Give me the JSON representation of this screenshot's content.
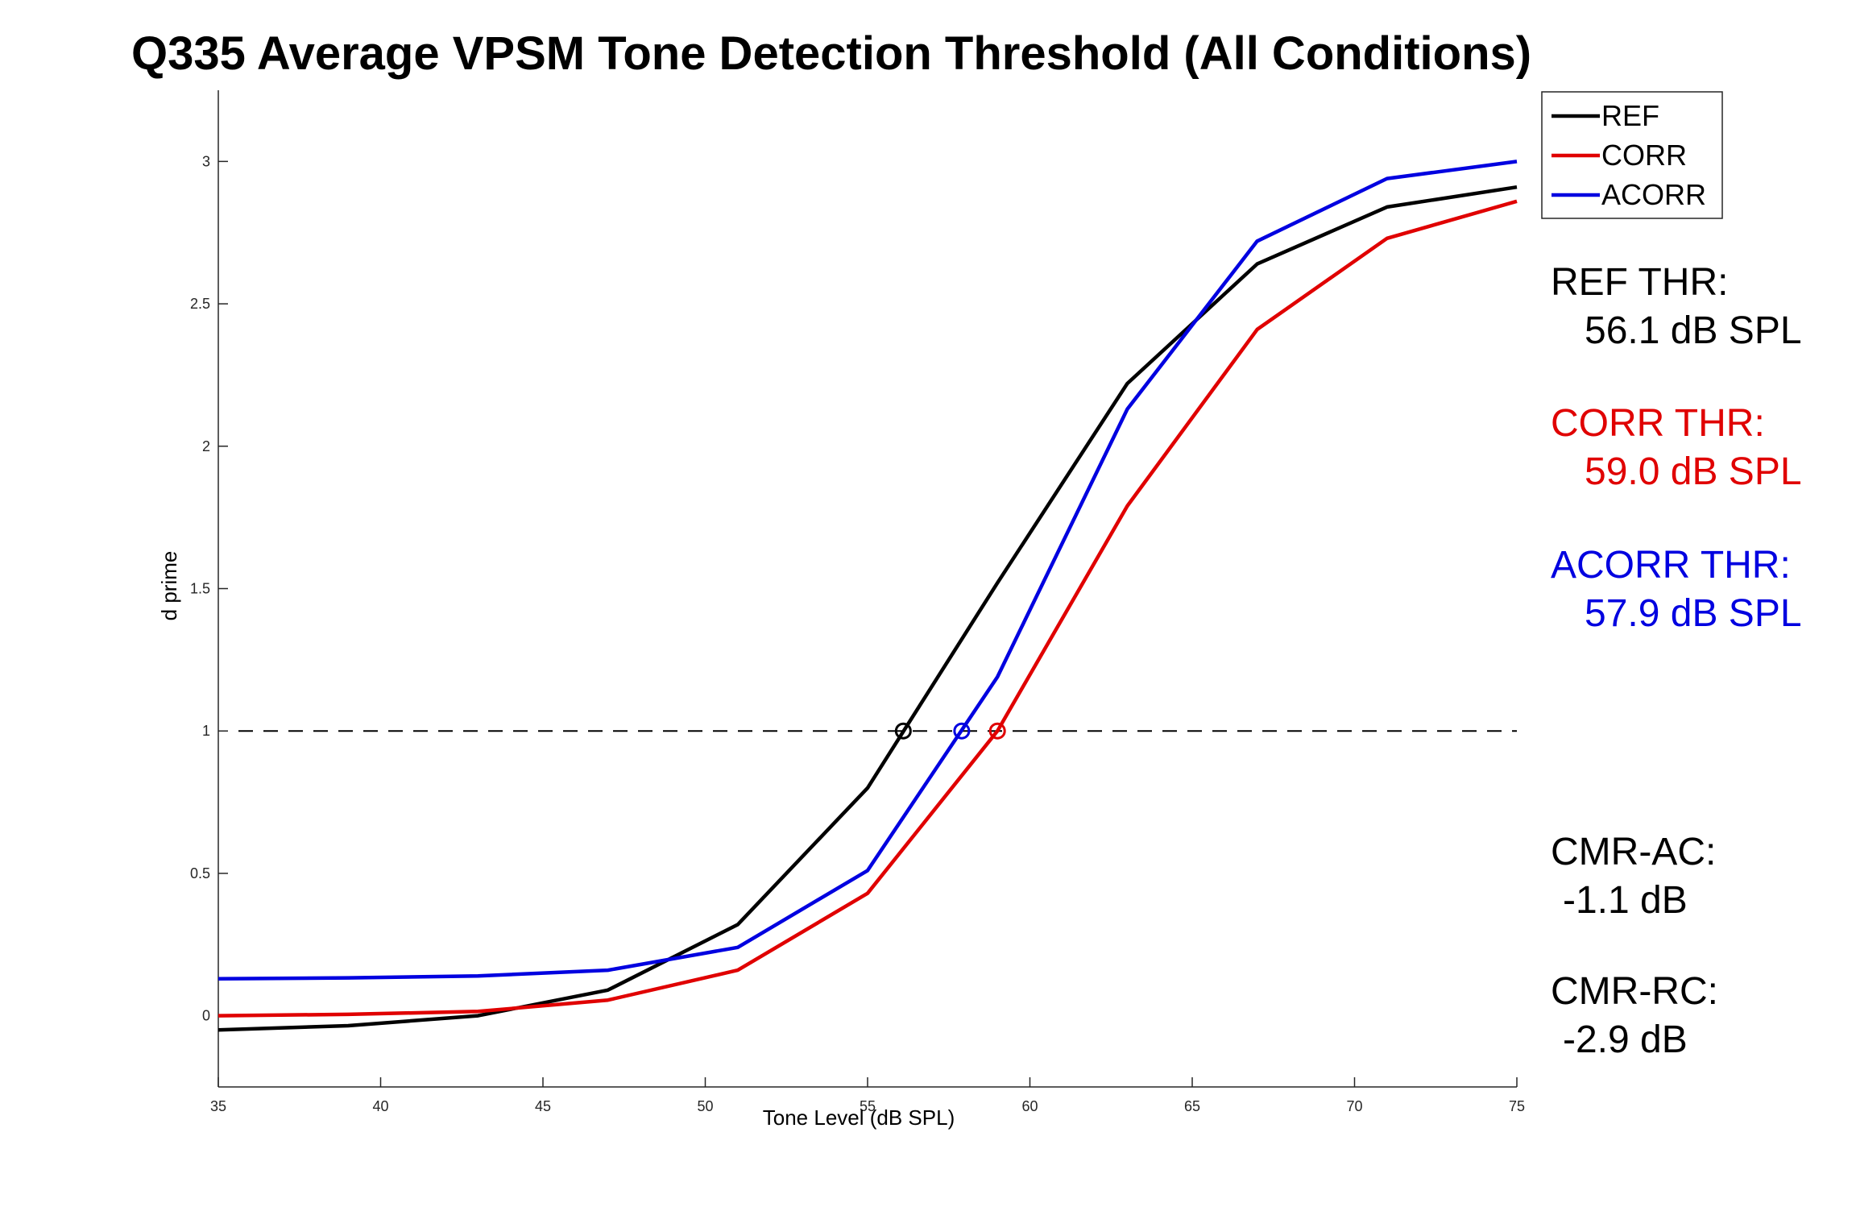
{
  "chart_data": {
    "type": "line",
    "title": "Q335 Average VPSM Tone Detection Threshold (All Conditions)",
    "xlabel": "Tone Level (dB SPL)",
    "ylabel": "d prime",
    "xlim": [
      35,
      75
    ],
    "ylim": [
      -0.25,
      3.25
    ],
    "xticks": [
      35,
      40,
      45,
      50,
      55,
      60,
      65,
      70,
      75
    ],
    "yticks": [
      0,
      0.5,
      1,
      1.5,
      2,
      2.5,
      3
    ],
    "xtick_labels": [
      "35",
      "40",
      "45",
      "50",
      "55",
      "60",
      "65",
      "70",
      "75"
    ],
    "ytick_labels": [
      "0",
      "0.5",
      "1",
      "1.5",
      "2",
      "2.5",
      "3"
    ],
    "grid": false,
    "legend_position": "top-right",
    "series": [
      {
        "name": "REF",
        "color": "#000000",
        "x": [
          35,
          39,
          43,
          47,
          51,
          55,
          59,
          63,
          67,
          71,
          75
        ],
        "values": [
          -0.05,
          -0.035,
          0.0,
          0.09,
          0.32,
          0.8,
          1.52,
          2.22,
          2.64,
          2.84,
          2.91
        ]
      },
      {
        "name": "CORR",
        "color": "#e00000",
        "x": [
          35,
          39,
          43,
          47,
          51,
          55,
          59,
          63,
          67,
          71,
          75
        ],
        "values": [
          0.0,
          0.005,
          0.015,
          0.055,
          0.16,
          0.43,
          1.0,
          1.79,
          2.41,
          2.73,
          2.86
        ]
      },
      {
        "name": "ACORR",
        "color": "#0000e0",
        "x": [
          35,
          39,
          43,
          47,
          51,
          55,
          59,
          63,
          67,
          71,
          75
        ],
        "values": [
          0.13,
          0.133,
          0.14,
          0.16,
          0.24,
          0.51,
          1.19,
          2.13,
          2.72,
          2.94,
          3.0
        ]
      }
    ],
    "reference_line": {
      "y": 1,
      "style": "dashed",
      "color": "#000000"
    },
    "threshold_markers": [
      {
        "series": "REF",
        "x": 56.1,
        "y": 1,
        "color": "#000000"
      },
      {
        "series": "CORR",
        "x": 59.0,
        "y": 1,
        "color": "#e00000"
      },
      {
        "series": "ACORR",
        "x": 57.9,
        "y": 1,
        "color": "#0000e0"
      }
    ],
    "annotations": [
      {
        "line1": "REF THR:",
        "line2": "56.1 dB SPL",
        "color": "#000000"
      },
      {
        "line1": "CORR THR:",
        "line2": "59.0 dB SPL",
        "color": "#e00000"
      },
      {
        "line1": "ACORR THR:",
        "line2": "57.9 dB SPL",
        "color": "#0000e0"
      },
      {
        "line1": "CMR-AC:",
        "line2": "-1.1 dB",
        "color": "#000000"
      },
      {
        "line1": "CMR-RC:",
        "line2": "-2.9 dB",
        "color": "#000000"
      }
    ]
  }
}
